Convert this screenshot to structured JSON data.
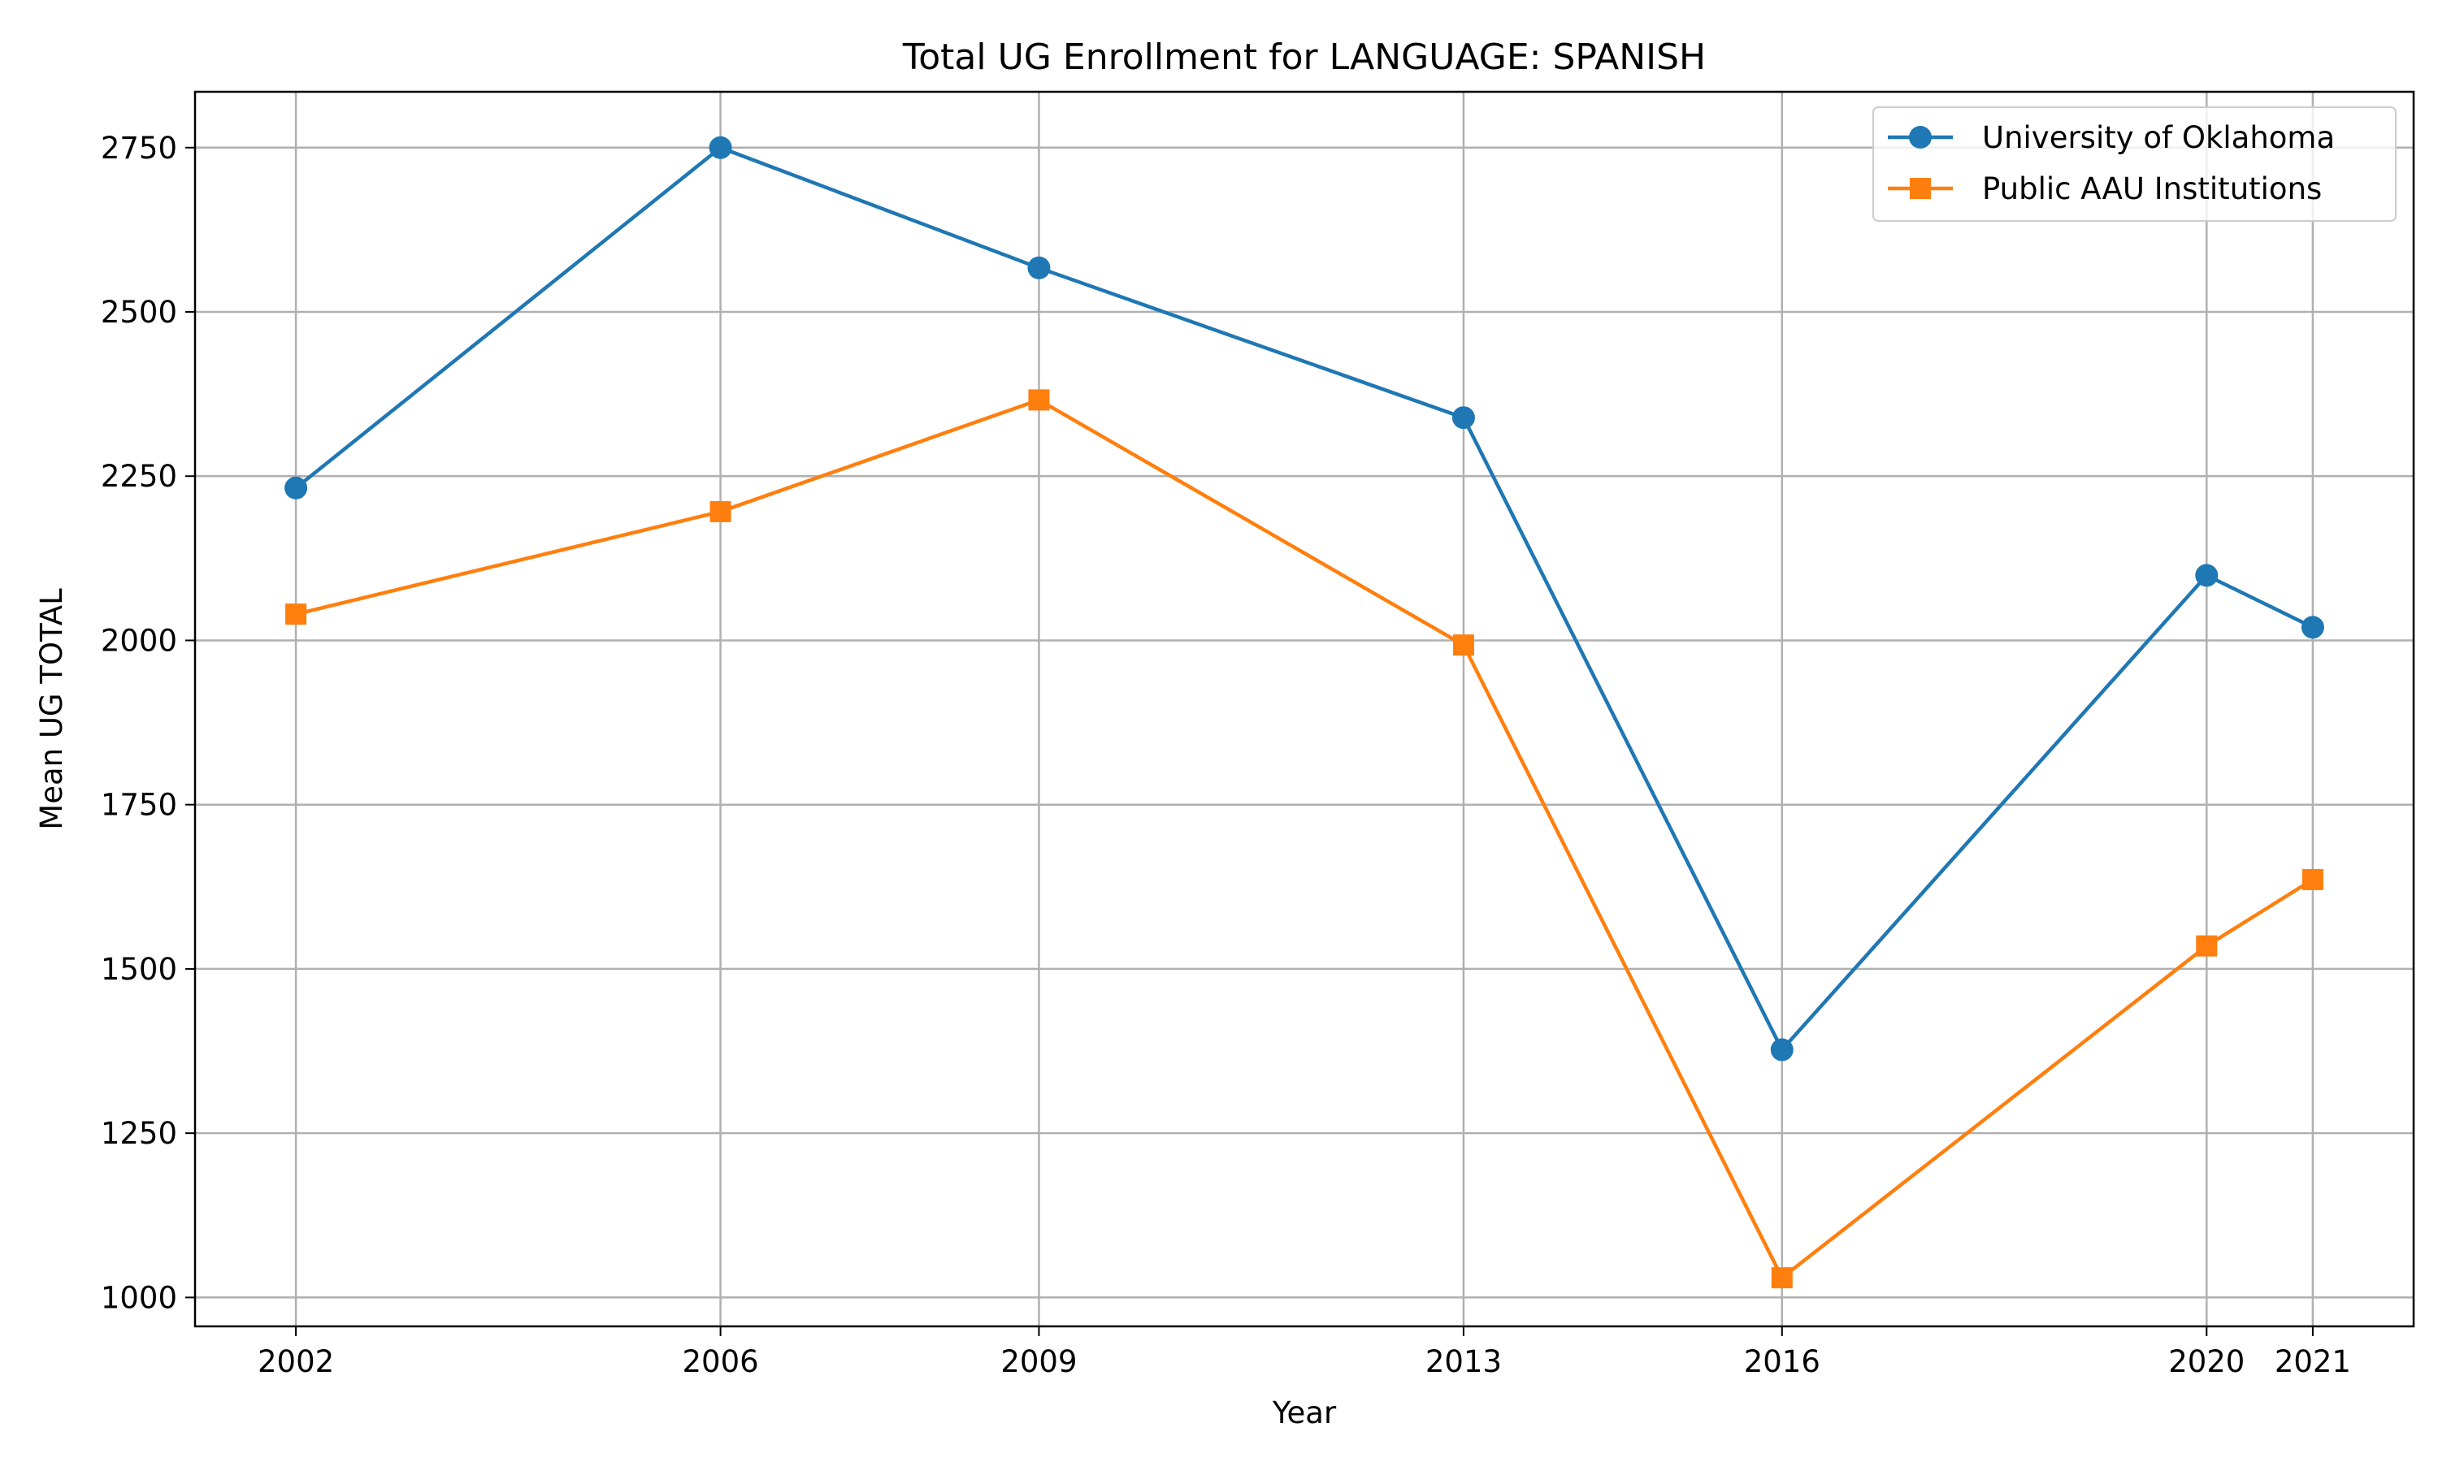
{
  "chart_data": {
    "type": "line",
    "title": "Total UG Enrollment for LANGUAGE: SPANISH",
    "xlabel": "Year",
    "ylabel": "Mean UG TOTAL",
    "x": [
      2002,
      2006,
      2009,
      2013,
      2016,
      2020,
      2021
    ],
    "x_tick_labels": [
      "2002",
      "2006",
      "2009",
      "2013",
      "2016",
      "2020",
      "2021"
    ],
    "xlim": [
      2001.05,
      2021.95
    ],
    "ylim": [
      956,
      2835
    ],
    "y_ticks": [
      1000,
      1250,
      1500,
      1750,
      2000,
      2250,
      2500,
      2750
    ],
    "y_tick_labels": [
      "1000",
      "1250",
      "1500",
      "1750",
      "2000",
      "2250",
      "2500",
      "2750"
    ],
    "grid": true,
    "legend_position": "top-right",
    "series": [
      {
        "name": "University of Oklahoma",
        "color": "#1f77b4",
        "marker": "circle",
        "values": [
          2232,
          2750,
          2567,
          2339,
          1377,
          2099,
          2020
        ]
      },
      {
        "name": "Public AAU Institutions",
        "color": "#ff7f0e",
        "marker": "square",
        "values": [
          2040,
          2196,
          2366,
          1993,
          1030,
          1535,
          1636
        ]
      }
    ]
  }
}
